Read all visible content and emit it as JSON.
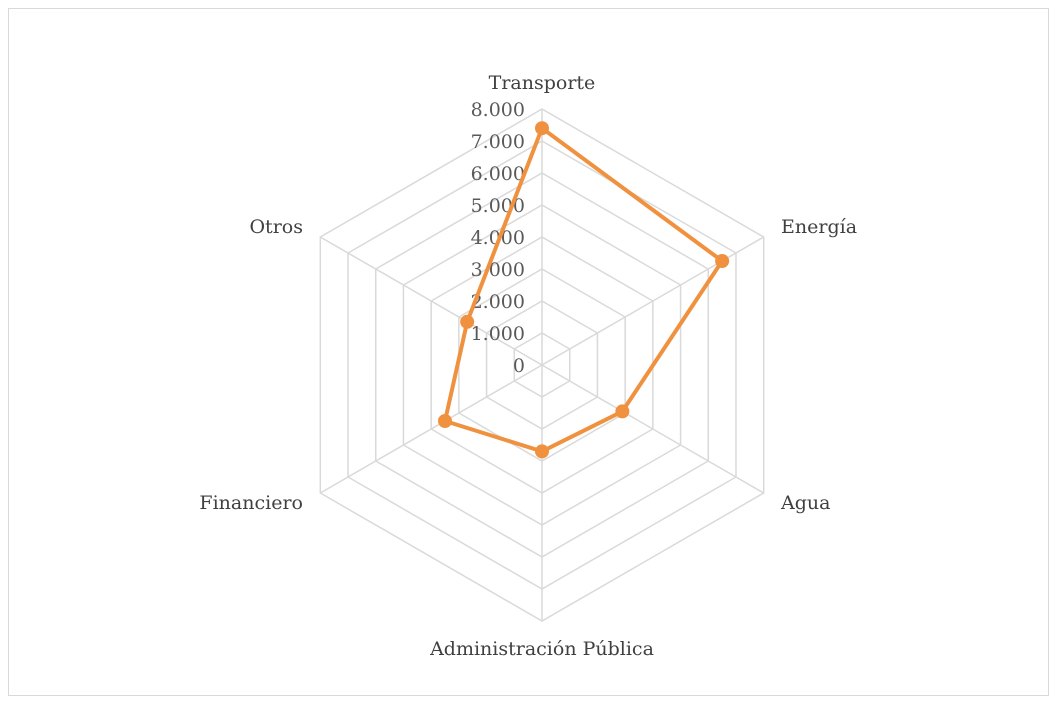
{
  "chart_data": {
    "type": "radar",
    "title": "",
    "categories": [
      "Transporte",
      "Energía",
      "Agua",
      "Administración Pública",
      "Financiero",
      "Otros"
    ],
    "series": [
      {
        "values": [
          7400,
          6500,
          2900,
          2700,
          3500,
          2700
        ],
        "color": "#f0913f"
      }
    ],
    "rlim": [
      0,
      8000
    ],
    "ticks": [
      0,
      1000,
      2000,
      3000,
      4000,
      5000,
      6000,
      7000,
      8000
    ],
    "tick_labels": [
      "0",
      "1.000",
      "2.000",
      "3.000",
      "4.000",
      "5.000",
      "6.000",
      "7.000",
      "8.000"
    ],
    "grid": true,
    "grid_color": "#d9d9d9",
    "legend": "none"
  }
}
